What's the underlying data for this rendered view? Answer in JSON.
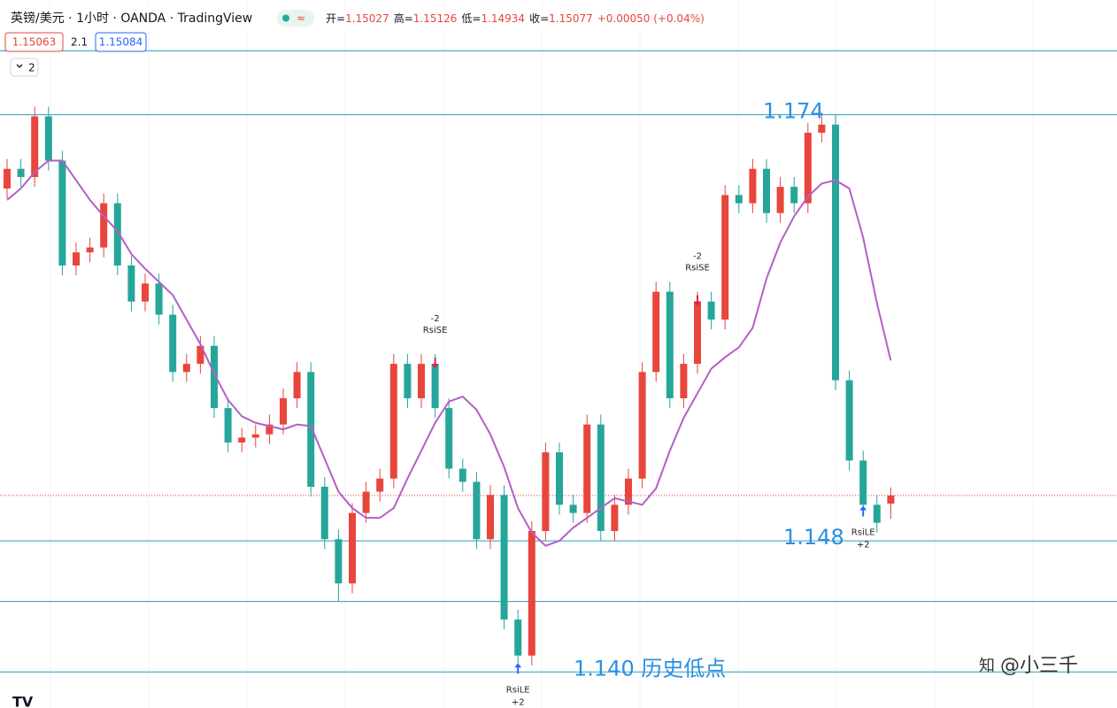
{
  "chart_data": {
    "type": "candlestick",
    "title": "英镑/美元 · 1小时 · OANDA · TradingView",
    "ohlc_labels": [
      "开=",
      "高=",
      "低=",
      "收="
    ],
    "change": "+0.00050 (+0.04%)",
    "indicator_values": [
      "1.15063",
      "2.1",
      "1.15084"
    ],
    "collapse_count": "2",
    "ylim": [
      1.1378,
      1.181
    ],
    "up_color": "#e8453c",
    "down_color": "#26a69a",
    "open": [
      1.1695,
      1.1707,
      1.1702,
      1.1739,
      1.1712,
      1.1648,
      1.1656,
      1.1659,
      1.1686,
      1.1648,
      1.1626,
      1.1637,
      1.1618,
      1.1583,
      1.1588,
      1.1599,
      1.1561,
      1.154,
      1.1543,
      1.1545,
      1.1551,
      1.1567,
      1.1583,
      1.1513,
      1.1481,
      1.1454,
      1.1497,
      1.151,
      1.1518,
      1.1588,
      1.1567,
      1.1588,
      1.1561,
      1.1524,
      1.1516,
      1.1481,
      1.1508,
      1.1432,
      1.141,
      1.1486,
      1.1534,
      1.1502,
      1.1497,
      1.1551,
      1.1486,
      1.1502,
      1.1518,
      1.1583,
      1.1632,
      1.1567,
      1.1588,
      1.1626,
      1.1615,
      1.1691,
      1.1686,
      1.1707,
      1.168,
      1.1696,
      1.1686,
      1.1729,
      1.1734,
      1.1578,
      1.1529,
      1.1502,
      1.15027
    ],
    "high": [
      1.1713,
      1.1713,
      1.1745,
      1.1745,
      1.1718,
      1.1662,
      1.1665,
      1.1692,
      1.1692,
      1.1654,
      1.1643,
      1.1643,
      1.1624,
      1.1594,
      1.1605,
      1.1605,
      1.1567,
      1.1549,
      1.1551,
      1.1557,
      1.1573,
      1.1589,
      1.1589,
      1.1519,
      1.1487,
      1.1503,
      1.1516,
      1.1524,
      1.1594,
      1.1594,
      1.1594,
      1.1594,
      1.1567,
      1.153,
      1.1522,
      1.1514,
      1.1514,
      1.1438,
      1.1492,
      1.154,
      1.154,
      1.1508,
      1.1557,
      1.1557,
      1.1508,
      1.1524,
      1.1589,
      1.1638,
      1.1638,
      1.1594,
      1.1632,
      1.1632,
      1.1697,
      1.1697,
      1.1713,
      1.1713,
      1.1702,
      1.1702,
      1.1735,
      1.174,
      1.174,
      1.1584,
      1.1535,
      1.1508,
      1.15126
    ],
    "low": [
      1.1689,
      1.1696,
      1.1696,
      1.1706,
      1.1642,
      1.1642,
      1.165,
      1.1653,
      1.1642,
      1.162,
      1.162,
      1.1612,
      1.1577,
      1.1577,
      1.1582,
      1.1555,
      1.1534,
      1.1534,
      1.1537,
      1.1539,
      1.1545,
      1.1561,
      1.1507,
      1.1475,
      1.1443,
      1.1448,
      1.1491,
      1.1504,
      1.1512,
      1.1561,
      1.1561,
      1.1555,
      1.1518,
      1.151,
      1.1475,
      1.1475,
      1.1426,
      1.14,
      1.1404,
      1.148,
      1.1496,
      1.1491,
      1.1491,
      1.148,
      1.148,
      1.1496,
      1.1512,
      1.1577,
      1.1561,
      1.1561,
      1.1582,
      1.1609,
      1.1609,
      1.168,
      1.168,
      1.1674,
      1.1674,
      1.168,
      1.168,
      1.1723,
      1.1572,
      1.1523,
      1.1496,
      1.1485,
      1.14934
    ],
    "close": [
      1.1707,
      1.1702,
      1.1739,
      1.1712,
      1.1648,
      1.1656,
      1.1659,
      1.1686,
      1.1648,
      1.1626,
      1.1637,
      1.1618,
      1.1583,
      1.1588,
      1.1599,
      1.1561,
      1.154,
      1.1543,
      1.1545,
      1.1551,
      1.1567,
      1.1583,
      1.1513,
      1.1481,
      1.1454,
      1.1497,
      1.151,
      1.1518,
      1.1588,
      1.1567,
      1.1588,
      1.1561,
      1.1524,
      1.1516,
      1.1481,
      1.1508,
      1.1432,
      1.141,
      1.1486,
      1.1534,
      1.1502,
      1.1497,
      1.1551,
      1.1486,
      1.1502,
      1.1518,
      1.1583,
      1.1632,
      1.1567,
      1.1588,
      1.1626,
      1.1615,
      1.1691,
      1.1686,
      1.1707,
      1.168,
      1.1696,
      1.1686,
      1.1729,
      1.1734,
      1.1578,
      1.1529,
      1.1502,
      1.1491,
      1.15077
    ],
    "ma": {
      "color": "#b45fc6",
      "values": [
        1.1688,
        1.1695,
        1.1705,
        1.1712,
        1.1712,
        1.17,
        1.1688,
        1.1678,
        1.1669,
        1.1655,
        1.1646,
        1.1638,
        1.163,
        1.1615,
        1.16,
        1.1582,
        1.1566,
        1.1556,
        1.1552,
        1.155,
        1.1548,
        1.1551,
        1.155,
        1.153,
        1.151,
        1.15,
        1.1494,
        1.1494,
        1.15,
        1.1518,
        1.1535,
        1.1552,
        1.1565,
        1.1568,
        1.156,
        1.1545,
        1.1525,
        1.15,
        1.1485,
        1.1477,
        1.148,
        1.1488,
        1.1494,
        1.15,
        1.1506,
        1.1504,
        1.1502,
        1.1512,
        1.1535,
        1.1555,
        1.157,
        1.1585,
        1.1592,
        1.1598,
        1.161,
        1.164,
        1.1662,
        1.1678,
        1.169,
        1.1698,
        1.17,
        1.1695,
        1.1665,
        1.1625,
        1.159
      ]
    },
    "hline_color": "#2b9cc0",
    "label_color": "#2a8fe0",
    "hlines": [
      {
        "value": 1.1779
      },
      {
        "value": 1.174,
        "label": "1.174"
      },
      {
        "value": 1.148,
        "label": "1.148"
      },
      {
        "value": 1.1443
      },
      {
        "value": 1.14,
        "label": "1.140 历史低点"
      }
    ],
    "signals": [
      {
        "candle": 31,
        "side": "short",
        "name": "RsiSE",
        "qty": "-2"
      },
      {
        "candle": 50,
        "side": "short",
        "name": "RsiSE",
        "qty": "-2"
      },
      {
        "candle": 37,
        "side": "long",
        "name": "RsiLE",
        "qty": "+2"
      },
      {
        "candle": 62,
        "side": "long",
        "name": "RsiLE",
        "qty": "+2"
      }
    ],
    "watermark": "@小三千"
  }
}
